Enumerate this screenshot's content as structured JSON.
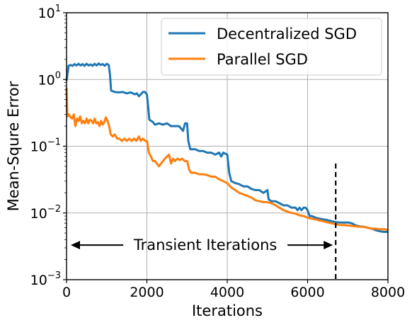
{
  "chart_data": {
    "type": "line",
    "xlabel": "Iterations",
    "ylabel": "Mean-Squre Error",
    "xlim": [
      0,
      8000
    ],
    "ylim": [
      0.001,
      10
    ],
    "yscale": "log",
    "grid": true,
    "legend_position": "top-right",
    "x_ticks": [
      {
        "value": 0,
        "label": "0"
      },
      {
        "value": 2000,
        "label": "2000"
      },
      {
        "value": 4000,
        "label": "4000"
      },
      {
        "value": 6000,
        "label": "6000"
      },
      {
        "value": 8000,
        "label": "8000"
      }
    ],
    "y_ticks": [
      {
        "value": 0.001,
        "base": "10",
        "exp": "−3"
      },
      {
        "value": 0.01,
        "base": "10",
        "exp": "−2"
      },
      {
        "value": 0.1,
        "base": "10",
        "exp": "−1"
      },
      {
        "value": 1,
        "base": "10",
        "exp": "0"
      },
      {
        "value": 10,
        "base": "10",
        "exp": "1"
      }
    ],
    "series": [
      {
        "name": "Decentralized SGD",
        "color": "#1f77b4",
        "points": [
          [
            0,
            0.95
          ],
          [
            50,
            1.6
          ],
          [
            100,
            1.65
          ],
          [
            150,
            1.6
          ],
          [
            200,
            1.7
          ],
          [
            250,
            1.62
          ],
          [
            300,
            1.72
          ],
          [
            350,
            1.62
          ],
          [
            400,
            1.7
          ],
          [
            450,
            1.6
          ],
          [
            500,
            1.72
          ],
          [
            550,
            1.62
          ],
          [
            600,
            1.68
          ],
          [
            650,
            1.6
          ],
          [
            700,
            1.72
          ],
          [
            750,
            1.62
          ],
          [
            800,
            1.74
          ],
          [
            850,
            1.65
          ],
          [
            900,
            1.7
          ],
          [
            950,
            1.6
          ],
          [
            1000,
            1.72
          ],
          [
            1050,
            1.65
          ],
          [
            1080,
            1.2
          ],
          [
            1110,
            0.68
          ],
          [
            1200,
            0.65
          ],
          [
            1300,
            0.64
          ],
          [
            1400,
            0.65
          ],
          [
            1500,
            0.62
          ],
          [
            1600,
            0.64
          ],
          [
            1700,
            0.6
          ],
          [
            1750,
            0.62
          ],
          [
            1800,
            0.56
          ],
          [
            1850,
            0.6
          ],
          [
            1900,
            0.65
          ],
          [
            1950,
            0.65
          ],
          [
            2000,
            0.6
          ],
          [
            2030,
            0.4
          ],
          [
            2060,
            0.25
          ],
          [
            2150,
            0.23
          ],
          [
            2200,
            0.21
          ],
          [
            2300,
            0.22
          ],
          [
            2400,
            0.21
          ],
          [
            2500,
            0.22
          ],
          [
            2600,
            0.2
          ],
          [
            2700,
            0.2
          ],
          [
            2800,
            0.2
          ],
          [
            2900,
            0.17
          ],
          [
            2950,
            0.22
          ],
          [
            3000,
            0.22
          ],
          [
            3030,
            0.12
          ],
          [
            3080,
            0.09
          ],
          [
            3200,
            0.09
          ],
          [
            3300,
            0.085
          ],
          [
            3400,
            0.085
          ],
          [
            3500,
            0.08
          ],
          [
            3600,
            0.08
          ],
          [
            3700,
            0.075
          ],
          [
            3800,
            0.08
          ],
          [
            3850,
            0.07
          ],
          [
            3900,
            0.08
          ],
          [
            4000,
            0.075
          ],
          [
            4050,
            0.04
          ],
          [
            4100,
            0.03
          ],
          [
            4200,
            0.028
          ],
          [
            4300,
            0.027
          ],
          [
            4400,
            0.025
          ],
          [
            4500,
            0.025
          ],
          [
            4600,
            0.023
          ],
          [
            4700,
            0.022
          ],
          [
            4800,
            0.022
          ],
          [
            4900,
            0.02
          ],
          [
            5000,
            0.022
          ],
          [
            5030,
            0.016
          ],
          [
            5100,
            0.015
          ],
          [
            5200,
            0.015
          ],
          [
            5300,
            0.014
          ],
          [
            5400,
            0.013
          ],
          [
            5500,
            0.013
          ],
          [
            5600,
            0.012
          ],
          [
            5700,
            0.012
          ],
          [
            5750,
            0.011
          ],
          [
            5800,
            0.012
          ],
          [
            5850,
            0.011
          ],
          [
            5900,
            0.012
          ],
          [
            5950,
            0.012
          ],
          [
            6000,
            0.011
          ],
          [
            6050,
            0.009
          ],
          [
            6100,
            0.009
          ],
          [
            6200,
            0.0085
          ],
          [
            6300,
            0.0082
          ],
          [
            6400,
            0.008
          ],
          [
            6500,
            0.0078
          ],
          [
            6600,
            0.0075
          ],
          [
            6700,
            0.0073
          ],
          [
            6800,
            0.0072
          ],
          [
            6900,
            0.0072
          ],
          [
            7000,
            0.0072
          ],
          [
            7100,
            0.007
          ],
          [
            7200,
            0.0065
          ],
          [
            7300,
            0.0063
          ],
          [
            7400,
            0.0062
          ],
          [
            7500,
            0.006
          ],
          [
            7600,
            0.0058
          ],
          [
            7700,
            0.0055
          ],
          [
            7800,
            0.0053
          ],
          [
            7900,
            0.0052
          ],
          [
            8000,
            0.0052
          ]
        ]
      },
      {
        "name": "Parallel SGD",
        "color": "#ff7f0e",
        "points": [
          [
            0,
            0.75
          ],
          [
            20,
            0.28
          ],
          [
            60,
            0.3
          ],
          [
            100,
            0.27
          ],
          [
            140,
            0.26
          ],
          [
            180,
            0.3
          ],
          [
            220,
            0.2
          ],
          [
            260,
            0.26
          ],
          [
            300,
            0.24
          ],
          [
            340,
            0.28
          ],
          [
            380,
            0.22
          ],
          [
            420,
            0.24
          ],
          [
            460,
            0.22
          ],
          [
            500,
            0.26
          ],
          [
            540,
            0.22
          ],
          [
            580,
            0.25
          ],
          [
            620,
            0.24
          ],
          [
            660,
            0.22
          ],
          [
            700,
            0.26
          ],
          [
            740,
            0.22
          ],
          [
            780,
            0.23
          ],
          [
            820,
            0.2
          ],
          [
            860,
            0.24
          ],
          [
            900,
            0.21
          ],
          [
            940,
            0.23
          ],
          [
            980,
            0.27
          ],
          [
            1020,
            0.24
          ],
          [
            1060,
            0.2
          ],
          [
            1100,
            0.15
          ],
          [
            1150,
            0.14
          ],
          [
            1200,
            0.15
          ],
          [
            1260,
            0.13
          ],
          [
            1320,
            0.13
          ],
          [
            1380,
            0.12
          ],
          [
            1440,
            0.13
          ],
          [
            1500,
            0.12
          ],
          [
            1560,
            0.13
          ],
          [
            1620,
            0.12
          ],
          [
            1680,
            0.13
          ],
          [
            1740,
            0.12
          ],
          [
            1800,
            0.14
          ],
          [
            1850,
            0.12
          ],
          [
            1900,
            0.13
          ],
          [
            1960,
            0.12
          ],
          [
            2000,
            0.12
          ],
          [
            2050,
            0.08
          ],
          [
            2100,
            0.07
          ],
          [
            2150,
            0.06
          ],
          [
            2200,
            0.06
          ],
          [
            2250,
            0.055
          ],
          [
            2300,
            0.05
          ],
          [
            2350,
            0.055
          ],
          [
            2400,
            0.06
          ],
          [
            2450,
            0.065
          ],
          [
            2500,
            0.07
          ],
          [
            2550,
            0.075
          ],
          [
            2600,
            0.055
          ],
          [
            2650,
            0.065
          ],
          [
            2700,
            0.06
          ],
          [
            2760,
            0.065
          ],
          [
            2820,
            0.062
          ],
          [
            2880,
            0.065
          ],
          [
            2940,
            0.06
          ],
          [
            3000,
            0.06
          ],
          [
            3050,
            0.045
          ],
          [
            3100,
            0.04
          ],
          [
            3200,
            0.04
          ],
          [
            3300,
            0.038
          ],
          [
            3400,
            0.038
          ],
          [
            3500,
            0.037
          ],
          [
            3600,
            0.035
          ],
          [
            3700,
            0.035
          ],
          [
            3800,
            0.032
          ],
          [
            3900,
            0.03
          ],
          [
            4000,
            0.028
          ],
          [
            4050,
            0.026
          ],
          [
            4100,
            0.024
          ],
          [
            4200,
            0.022
          ],
          [
            4300,
            0.02
          ],
          [
            4400,
            0.019
          ],
          [
            4500,
            0.018
          ],
          [
            4600,
            0.017
          ],
          [
            4700,
            0.0155
          ],
          [
            4800,
            0.015
          ],
          [
            4900,
            0.0145
          ],
          [
            5000,
            0.0145
          ],
          [
            5100,
            0.014
          ],
          [
            5200,
            0.013
          ],
          [
            5300,
            0.012
          ],
          [
            5400,
            0.011
          ],
          [
            5500,
            0.0105
          ],
          [
            5600,
            0.01
          ],
          [
            5700,
            0.0098
          ],
          [
            5800,
            0.0092
          ],
          [
            5900,
            0.009
          ],
          [
            6000,
            0.0085
          ],
          [
            6100,
            0.0082
          ],
          [
            6200,
            0.008
          ],
          [
            6300,
            0.0077
          ],
          [
            6400,
            0.0075
          ],
          [
            6500,
            0.0072
          ],
          [
            6600,
            0.007
          ],
          [
            6700,
            0.0068
          ],
          [
            6800,
            0.0066
          ],
          [
            6900,
            0.0066
          ],
          [
            7000,
            0.0065
          ],
          [
            7100,
            0.0064
          ],
          [
            7200,
            0.0063
          ],
          [
            7300,
            0.0062
          ],
          [
            7400,
            0.0062
          ],
          [
            7500,
            0.006
          ],
          [
            7600,
            0.0058
          ],
          [
            7700,
            0.0058
          ],
          [
            7800,
            0.0057
          ],
          [
            7900,
            0.0057
          ],
          [
            8000,
            0.0056
          ]
        ]
      }
    ],
    "annotations": [
      {
        "type": "vline",
        "x": 6700,
        "style": "dashed",
        "color": "#000000"
      },
      {
        "type": "double-arrow",
        "x_start": 0,
        "x_end": 6700,
        "y": 0.0033,
        "text": "Transient Iterations"
      }
    ]
  }
}
